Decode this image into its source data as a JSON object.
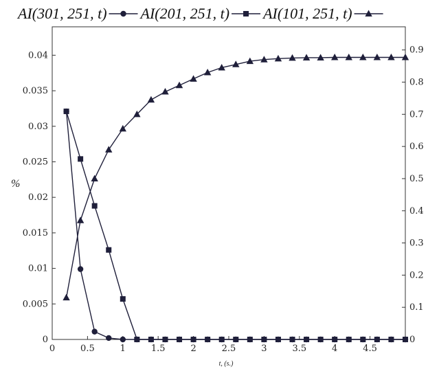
{
  "chart_data": {
    "type": "line",
    "xlabel": "t, (s.)",
    "ylabel": "%",
    "xlim": [
      0,
      5
    ],
    "ylim_left": [
      0,
      0.044
    ],
    "ylim_right": [
      0,
      0.972
    ],
    "x_ticks": [
      0,
      0.5,
      1,
      1.5,
      2,
      2.5,
      3,
      3.5,
      4,
      4.5
    ],
    "x_tick_labels": [
      "0",
      "0.5",
      "1",
      "1.5",
      "2",
      "2.5",
      "3",
      "3.5",
      "4",
      "4.5"
    ],
    "y_left_ticks": [
      0,
      0.005,
      0.01,
      0.015,
      0.02,
      0.025,
      0.03,
      0.035,
      0.04
    ],
    "y_left_tick_labels": [
      "0",
      "0.005",
      "0.01",
      "0.015",
      "0.02",
      "0.025",
      "0.03",
      "0.035",
      "0.04"
    ],
    "y_right_ticks": [
      0,
      0.1,
      0.2,
      0.3,
      0.4,
      0.5,
      0.6,
      0.7,
      0.8,
      0.9
    ],
    "y_right_tick_labels": [
      "0",
      "0.1",
      "0.2",
      "0.3",
      "0.4",
      "0.5",
      "0.6",
      "0.7",
      "0.8",
      "0.9"
    ],
    "legend_position": "top",
    "grid": false,
    "series": [
      {
        "name": "AI(301, 251, t)",
        "marker": "circle",
        "axis": "left",
        "x": [
          0.2,
          0.4,
          0.6,
          0.8,
          1.0,
          1.2,
          1.4,
          1.6,
          1.8,
          2.0,
          2.2,
          2.4,
          2.6,
          2.8,
          3.0,
          3.2,
          3.4,
          3.6,
          3.8,
          4.0,
          4.2,
          4.4,
          4.6,
          4.8,
          5.0
        ],
        "values": [
          0.0321,
          0.0099,
          0.0011,
          0.0002,
          0.0,
          0.0,
          0.0,
          0.0,
          0.0,
          0.0,
          0.0,
          0.0,
          0.0,
          0.0,
          0.0,
          0.0,
          0.0,
          0.0,
          0.0,
          0.0,
          0.0,
          0.0,
          0.0,
          0.0,
          0.0
        ]
      },
      {
        "name": "AI(201, 251, t)",
        "marker": "square",
        "axis": "left",
        "x": [
          0.2,
          0.4,
          0.6,
          0.8,
          1.0,
          1.2,
          1.4,
          1.6,
          1.8,
          2.0,
          2.2,
          2.4,
          2.6,
          2.8,
          3.0,
          3.2,
          3.4,
          3.6,
          3.8,
          4.0,
          4.2,
          4.4,
          4.6,
          4.8,
          5.0
        ],
        "values": [
          0.0321,
          0.0254,
          0.0188,
          0.0126,
          0.0057,
          0.0,
          0.0,
          0.0,
          0.0,
          0.0,
          0.0,
          0.0,
          0.0,
          0.0,
          0.0,
          0.0,
          0.0,
          0.0,
          0.0,
          0.0,
          0.0,
          0.0,
          0.0,
          0.0,
          0.0
        ]
      },
      {
        "name": "AI(101, 251, t)",
        "marker": "triangle",
        "axis": "right",
        "x": [
          0.2,
          0.4,
          0.6,
          0.8,
          1.0,
          1.2,
          1.4,
          1.6,
          1.8,
          2.0,
          2.2,
          2.4,
          2.6,
          2.8,
          3.0,
          3.2,
          3.4,
          3.6,
          3.8,
          4.0,
          4.2,
          4.4,
          4.6,
          4.8,
          5.0
        ],
        "values": [
          0.13,
          0.37,
          0.5,
          0.59,
          0.655,
          0.7,
          0.745,
          0.77,
          0.79,
          0.81,
          0.83,
          0.845,
          0.855,
          0.865,
          0.87,
          0.873,
          0.875,
          0.876,
          0.876,
          0.877,
          0.877,
          0.877,
          0.877,
          0.877,
          0.877
        ]
      }
    ]
  }
}
